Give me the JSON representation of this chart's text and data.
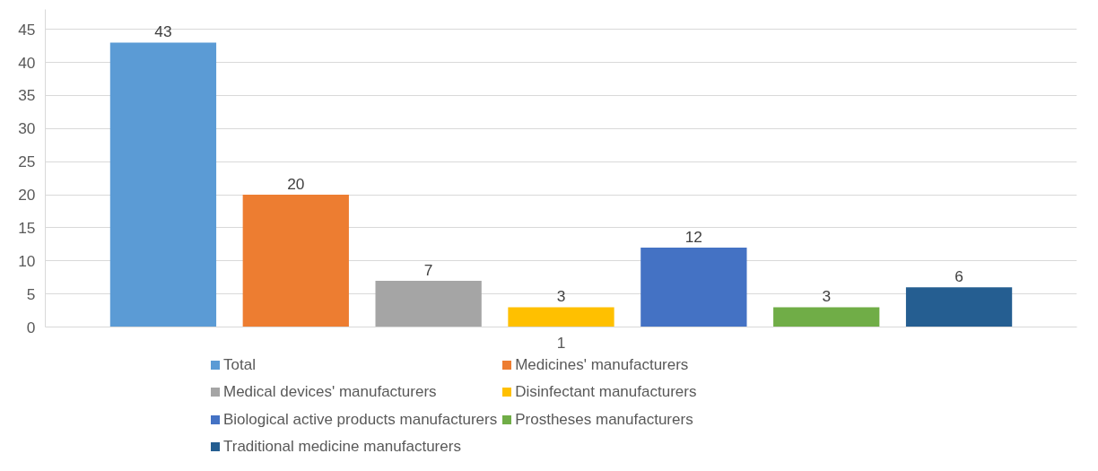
{
  "chart_data": {
    "type": "bar",
    "categories": [
      "1"
    ],
    "series": [
      {
        "name": "Total",
        "color": "#5b9bd5",
        "values": [
          43
        ]
      },
      {
        "name": "Medicines' manufacturers",
        "color": "#ed7d31",
        "values": [
          20
        ]
      },
      {
        "name": "Medical devices' manufacturers",
        "color": "#a5a5a5",
        "values": [
          7
        ]
      },
      {
        "name": "Disinfectant manufacturers",
        "color": "#ffc000",
        "values": [
          3
        ]
      },
      {
        "name": "Biological active products manufacturers",
        "color": "#4472c4",
        "values": [
          12
        ]
      },
      {
        "name": "Prostheses manufacturers",
        "color": "#70ad47",
        "values": [
          3
        ]
      },
      {
        "name": "Traditional medicine manufacturers",
        "color": "#255e91",
        "values": [
          6
        ]
      }
    ],
    "ylim": [
      0,
      48
    ],
    "yticks": [
      0,
      5,
      10,
      15,
      20,
      25,
      30,
      35,
      40,
      45
    ],
    "grid": "y",
    "legend": "bottom",
    "data_labels": true
  }
}
